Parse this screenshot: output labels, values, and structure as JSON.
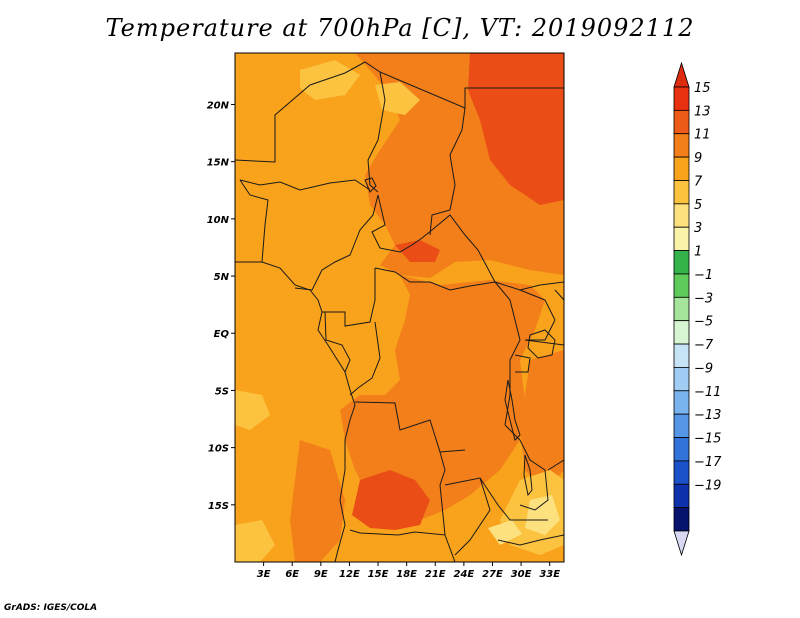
{
  "title": "Temperature at 700hPa [C], VT: 2019092112",
  "credit": "GrADS: IGES/COLA",
  "map": {
    "lat_labels": [
      "20N",
      "15N",
      "10N",
      "5N",
      "EQ",
      "5S",
      "10S",
      "15S"
    ],
    "lon_labels": [
      "3E",
      "6E",
      "9E",
      "12E",
      "15E",
      "18E",
      "21E",
      "24E",
      "27E",
      "30E",
      "33E"
    ],
    "lat_values": [
      20,
      15,
      10,
      5,
      0,
      -5,
      -10,
      -15
    ],
    "lon_values": [
      3,
      6,
      9,
      12,
      15,
      18,
      21,
      24,
      27,
      30,
      33
    ],
    "lat_range": [
      -20,
      24.5
    ],
    "lon_range": [
      0,
      34.5
    ],
    "colors": {
      "base": "#f8a31b",
      "warm": "#f37f1a",
      "hot": "#ea4e16",
      "light": "#fcc341",
      "pale": "#fde17f",
      "border": "#1a1a1a"
    }
  },
  "colorbar": {
    "levels": [
      "15",
      "13",
      "11",
      "9",
      "7",
      "5",
      "3",
      "1",
      "−1",
      "−3",
      "−5",
      "−7",
      "−9",
      "−11",
      "−13",
      "−15",
      "−17",
      "−19"
    ],
    "colors": [
      "#e8310e",
      "#ee5a18",
      "#f37f1a",
      "#f8a31b",
      "#fcc341",
      "#fde17f",
      "#fbf3a8",
      "#34b34a",
      "#5ecb5a",
      "#a5e59b",
      "#d7f5d2",
      "#c7e4f7",
      "#a1cdf4",
      "#7ab4ee",
      "#5596e6",
      "#3273da",
      "#1b52c9",
      "#0d32ab",
      "#07146d"
    ],
    "top_tip_color": "#dd2b10",
    "bottom_tip_color": "#d8d8f3"
  }
}
